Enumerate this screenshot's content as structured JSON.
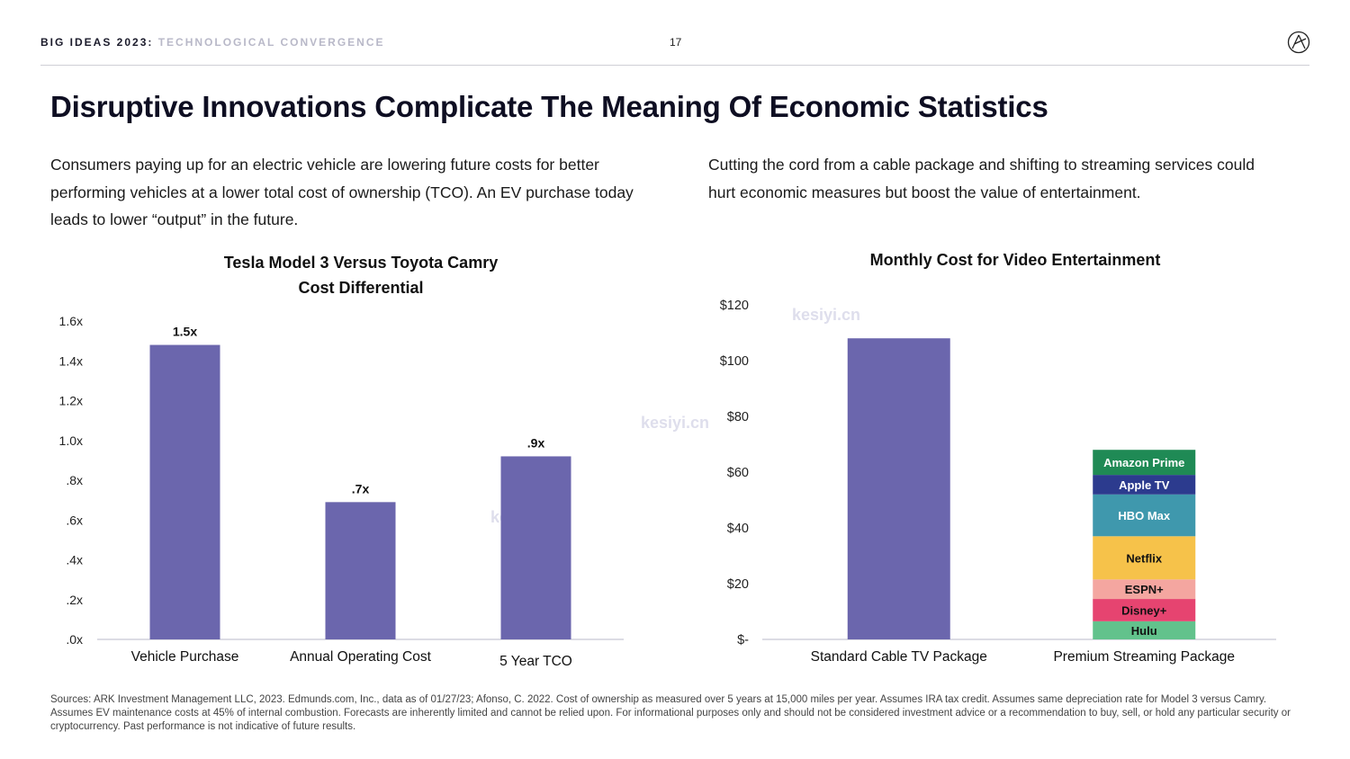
{
  "header": {
    "brand": "BIG IDEAS 2023",
    "separator": ":",
    "subtitle": "TECHNOLOGICAL CONVERGENCE",
    "page_number": "17"
  },
  "title": "Disruptive Innovations Complicate The Meaning Of Economic Statistics",
  "left_paragraph": "Consumers paying up for an electric vehicle are lowering future costs for better performing vehicles at a lower total cost of ownership (TCO). An EV purchase today leads to lower “output” in the future.",
  "right_paragraph": "Cutting the cord from a cable package and shifting to streaming services could hurt economic measures but boost the value of entertainment.",
  "watermark": "kesiyi.cn",
  "sources": "Sources: ARK Investment Management LLC, 2023. Edmunds.com, Inc., data as of 01/27/23; Afonso, C. 2022. Cost of ownership as measured over 5 years at 15,000 miles per year. Assumes IRA tax credit. Assumes same depreciation rate for Model 3 versus Camry. Assumes EV maintenance costs at 45% of internal combustion. Forecasts are inherently limited and cannot be relied upon. For informational purposes only and should not be considered investment advice or a recommendation to buy, sell, or hold any particular security or cryptocurrency. Past performance is not indicative of future results.",
  "colors": {
    "bar": "#6b66ad",
    "amazon": "#1f8a55",
    "apple": "#2c3b8e",
    "hbo": "#3f98ad",
    "netflix": "#f6c24a",
    "espn": "#f4a6a0",
    "disney": "#e64470",
    "hulu": "#62c28c"
  },
  "chart_data": [
    {
      "type": "bar",
      "title_lines": [
        "Tesla Model 3 Versus Toyota Camry",
        "Cost Differential"
      ],
      "categories": [
        "Vehicle Purchase",
        "Annual Operating Cost",
        "5 Year TCO"
      ],
      "values": [
        1.48,
        0.69,
        0.92
      ],
      "data_labels": [
        "1.5x",
        ".7x",
        ".9x"
      ],
      "y_ticks": [
        0,
        0.2,
        0.4,
        0.6,
        0.8,
        1.0,
        1.2,
        1.4,
        1.6
      ],
      "y_tick_labels": [
        ".0x",
        ".2x",
        ".4x",
        ".6x",
        ".8x",
        "1.0x",
        "1.2x",
        "1.4x",
        "1.6x"
      ],
      "ylim": [
        0,
        1.6
      ],
      "xlabel": "",
      "ylabel": ""
    },
    {
      "type": "bar",
      "stacked": true,
      "title": "Monthly Cost for Video Entertainment",
      "categories": [
        "Standard Cable TV Package",
        "Premium Streaming Package"
      ],
      "cable_value": 108,
      "stack_segments": [
        {
          "name": "Hulu",
          "value": 6.5,
          "color_key": "hulu",
          "text_color": "#111111"
        },
        {
          "name": "Disney+",
          "value": 8,
          "color_key": "disney",
          "text_color": "#111111"
        },
        {
          "name": "ESPN+",
          "value": 7,
          "color_key": "espn",
          "text_color": "#111111"
        },
        {
          "name": "Netflix",
          "value": 15.5,
          "color_key": "netflix",
          "text_color": "#111111"
        },
        {
          "name": "HBO Max",
          "value": 15,
          "color_key": "hbo",
          "text_color": "#ffffff"
        },
        {
          "name": "Apple TV",
          "value": 7,
          "color_key": "apple",
          "text_color": "#ffffff"
        },
        {
          "name": "Amazon Prime",
          "value": 9,
          "color_key": "amazon",
          "text_color": "#ffffff"
        }
      ],
      "y_ticks": [
        0,
        20,
        40,
        60,
        80,
        100,
        120
      ],
      "y_tick_labels": [
        "$-",
        "$20",
        "$40",
        "$60",
        "$80",
        "$100",
        "$120"
      ],
      "ylim": [
        0,
        120
      ],
      "xlabel": "",
      "ylabel": ""
    }
  ]
}
